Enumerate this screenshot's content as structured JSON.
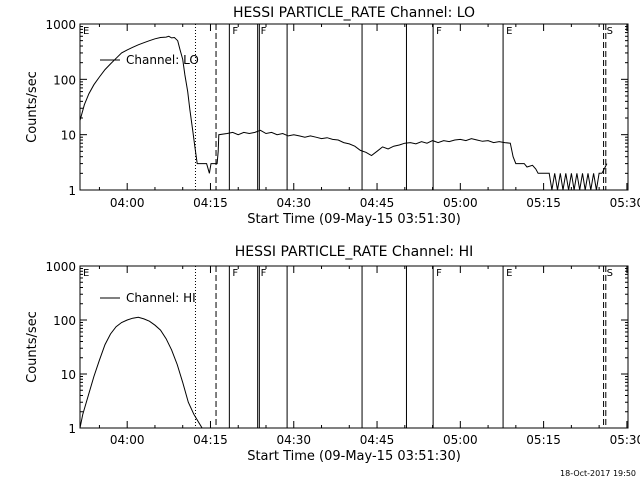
{
  "footer": {
    "timestamp": "18-Oct-2017 19:50"
  },
  "chart_data": [
    {
      "type": "line",
      "title": "HESSI PARTICLE_RATE Channel: LO",
      "xlabel": "Start Time (09-May-15 03:51:30)",
      "ylabel": "Counts/sec",
      "log_y": true,
      "ylim": [
        1,
        1000
      ],
      "xlim": [
        231.5,
        330.2
      ],
      "x_unit": "minutes after 00:00 on 09-May-15",
      "x_ticks": [
        240,
        255,
        270,
        285,
        300,
        315,
        330
      ],
      "x_tick_labels": [
        "04:00",
        "04:15",
        "04:30",
        "04:45",
        "05:00",
        "05:15",
        "05:30"
      ],
      "y_ticks": [
        1,
        10,
        100,
        1000
      ],
      "y_tick_labels": [
        "1",
        "10",
        "100",
        "1000"
      ],
      "legend": {
        "label": "Channel: LO",
        "position": "upper-left"
      },
      "series": [
        {
          "name": "Channel: LO",
          "points": [
            [
              231.5,
              18
            ],
            [
              232.3,
              35
            ],
            [
              233.1,
              55
            ],
            [
              234,
              80
            ],
            [
              235,
              110
            ],
            [
              236,
              150
            ],
            [
              237,
              190
            ],
            [
              238,
              240
            ],
            [
              239,
              300
            ],
            [
              240,
              340
            ],
            [
              241,
              380
            ],
            [
              242,
              420
            ],
            [
              243,
              460
            ],
            [
              244,
              500
            ],
            [
              245,
              540
            ],
            [
              246,
              570
            ],
            [
              247,
              580
            ],
            [
              247.5,
              600
            ],
            [
              248,
              560
            ],
            [
              248.5,
              570
            ],
            [
              249.1,
              500
            ],
            [
              249.5,
              350
            ],
            [
              250,
              230
            ],
            [
              250.4,
              120
            ],
            [
              250.9,
              60
            ],
            [
              251.3,
              28
            ],
            [
              251.8,
              12
            ],
            [
              252.2,
              6
            ],
            [
              252.6,
              3
            ],
            [
              253.6,
              3
            ],
            [
              254.3,
              3
            ],
            [
              254.8,
              2
            ],
            [
              255.1,
              3
            ],
            [
              255.6,
              3
            ],
            [
              256.2,
              3
            ],
            [
              256.4,
              5
            ],
            [
              256.5,
              10
            ],
            [
              258,
              10.5
            ],
            [
              259,
              11
            ],
            [
              260,
              10
            ],
            [
              261,
              11
            ],
            [
              262,
              10.5
            ],
            [
              263,
              11
            ],
            [
              264,
              12
            ],
            [
              265,
              10.5
            ],
            [
              266,
              11
            ],
            [
              267,
              10
            ],
            [
              268,
              10.5
            ],
            [
              269,
              9.5
            ],
            [
              270,
              10
            ],
            [
              271,
              9.5
            ],
            [
              272,
              9
            ],
            [
              273,
              9.5
            ],
            [
              274,
              9
            ],
            [
              275,
              8.5
            ],
            [
              276,
              8.8
            ],
            [
              277,
              8.2
            ],
            [
              278,
              8
            ],
            [
              279,
              7.2
            ],
            [
              280,
              6.8
            ],
            [
              281,
              6.2
            ],
            [
              282,
              5.2
            ],
            [
              283,
              4.8
            ],
            [
              284,
              4.2
            ],
            [
              285,
              5
            ],
            [
              286,
              6
            ],
            [
              287,
              5.5
            ],
            [
              288,
              6.2
            ],
            [
              289,
              6.5
            ],
            [
              290,
              7
            ],
            [
              291,
              7.2
            ],
            [
              292,
              6.8
            ],
            [
              293,
              7.5
            ],
            [
              294,
              7
            ],
            [
              295,
              7.8
            ],
            [
              296,
              7.2
            ],
            [
              297,
              7.8
            ],
            [
              298,
              7.5
            ],
            [
              299,
              8
            ],
            [
              300,
              8.2
            ],
            [
              301,
              7.8
            ],
            [
              302,
              8.5
            ],
            [
              303,
              8
            ],
            [
              304,
              7.6
            ],
            [
              305,
              7.8
            ],
            [
              306,
              7.2
            ],
            [
              307,
              7.5
            ],
            [
              308,
              7.2
            ],
            [
              309,
              7
            ],
            [
              309.5,
              4
            ],
            [
              310,
              3
            ],
            [
              311.5,
              3
            ],
            [
              312,
              2.6
            ],
            [
              313,
              2.8
            ],
            [
              313.6,
              2.4
            ],
            [
              314,
              2
            ],
            [
              315,
              2
            ],
            [
              316,
              2
            ],
            [
              316.5,
              1
            ],
            [
              317,
              2
            ],
            [
              317.5,
              1
            ],
            [
              318,
              2
            ],
            [
              318.5,
              1
            ],
            [
              319,
              2
            ],
            [
              319.5,
              1
            ],
            [
              320,
              2
            ],
            [
              320.5,
              1
            ],
            [
              321,
              2
            ],
            [
              321.5,
              1
            ],
            [
              322,
              2
            ],
            [
              322.5,
              1
            ],
            [
              323,
              2
            ],
            [
              323.5,
              1
            ],
            [
              324,
              2
            ],
            [
              324.5,
              1
            ],
            [
              325,
              2
            ],
            [
              325.5,
              2
            ],
            [
              326,
              2.5
            ],
            [
              326.4,
              3
            ]
          ]
        }
      ],
      "markers": [
        {
          "x": 252.3,
          "label": "",
          "style": "dotted"
        },
        {
          "x": 256.0,
          "label": "",
          "style": "dashed"
        },
        {
          "x": 258.4,
          "label": "F",
          "style": "solid"
        },
        {
          "x": 263.5,
          "label": "F",
          "style": "solid"
        },
        {
          "x": 263.8,
          "label": "",
          "style": "solid"
        },
        {
          "x": 268.8,
          "label": "",
          "style": "solid"
        },
        {
          "x": 282.3,
          "label": "",
          "style": "solid"
        },
        {
          "x": 290.3,
          "label": "",
          "style": "solid"
        },
        {
          "x": 295.1,
          "label": "F",
          "style": "solid"
        },
        {
          "x": 307.7,
          "label": "E",
          "style": "solid"
        },
        {
          "x": 325.8,
          "label": "S",
          "style": "dashed"
        },
        {
          "x": 326.2,
          "label": "",
          "style": "dashed"
        },
        {
          "x": 231.5,
          "label": "E",
          "style": "none"
        }
      ]
    },
    {
      "type": "line",
      "title": "HESSI PARTICLE_RATE Channel: HI",
      "xlabel": "Start Time (09-May-15 03:51:30)",
      "ylabel": "Counts/sec",
      "log_y": true,
      "ylim": [
        1,
        1000
      ],
      "xlim": [
        231.5,
        330.2
      ],
      "x_unit": "minutes after 00:00 on 09-May-15",
      "x_ticks": [
        240,
        255,
        270,
        285,
        300,
        315,
        330
      ],
      "x_tick_labels": [
        "04:00",
        "04:15",
        "04:30",
        "04:45",
        "05:00",
        "05:15",
        "05:30"
      ],
      "y_ticks": [
        1,
        10,
        100,
        1000
      ],
      "y_tick_labels": [
        "1",
        "10",
        "100",
        "1000"
      ],
      "legend": {
        "label": "Channel: HI",
        "position": "upper-left"
      },
      "series": [
        {
          "name": "Channel: HI",
          "points": [
            [
              231.5,
              1
            ],
            [
              232,
              1.8
            ],
            [
              233,
              4
            ],
            [
              234,
              9
            ],
            [
              235,
              18
            ],
            [
              236,
              35
            ],
            [
              237,
              55
            ],
            [
              238,
              75
            ],
            [
              239,
              90
            ],
            [
              240,
              100
            ],
            [
              241,
              108
            ],
            [
              242,
              112
            ],
            [
              243,
              105
            ],
            [
              244,
              95
            ],
            [
              245,
              80
            ],
            [
              246,
              65
            ],
            [
              247,
              45
            ],
            [
              248,
              28
            ],
            [
              249,
              15
            ],
            [
              250,
              7
            ],
            [
              251,
              3
            ],
            [
              252,
              1.8
            ],
            [
              252.8,
              1.3
            ],
            [
              253.5,
              1
            ]
          ]
        }
      ],
      "markers": [
        {
          "x": 252.3,
          "label": "",
          "style": "dotted"
        },
        {
          "x": 256.0,
          "label": "",
          "style": "dashed"
        },
        {
          "x": 258.4,
          "label": "F",
          "style": "solid"
        },
        {
          "x": 263.5,
          "label": "F",
          "style": "solid"
        },
        {
          "x": 263.8,
          "label": "",
          "style": "solid"
        },
        {
          "x": 268.8,
          "label": "",
          "style": "solid"
        },
        {
          "x": 282.3,
          "label": "",
          "style": "solid"
        },
        {
          "x": 290.3,
          "label": "",
          "style": "solid"
        },
        {
          "x": 295.1,
          "label": "F",
          "style": "solid"
        },
        {
          "x": 307.7,
          "label": "E",
          "style": "solid"
        },
        {
          "x": 325.8,
          "label": "S",
          "style": "dashed"
        },
        {
          "x": 326.2,
          "label": "",
          "style": "dashed"
        },
        {
          "x": 231.5,
          "label": "E",
          "style": "none"
        }
      ]
    }
  ]
}
